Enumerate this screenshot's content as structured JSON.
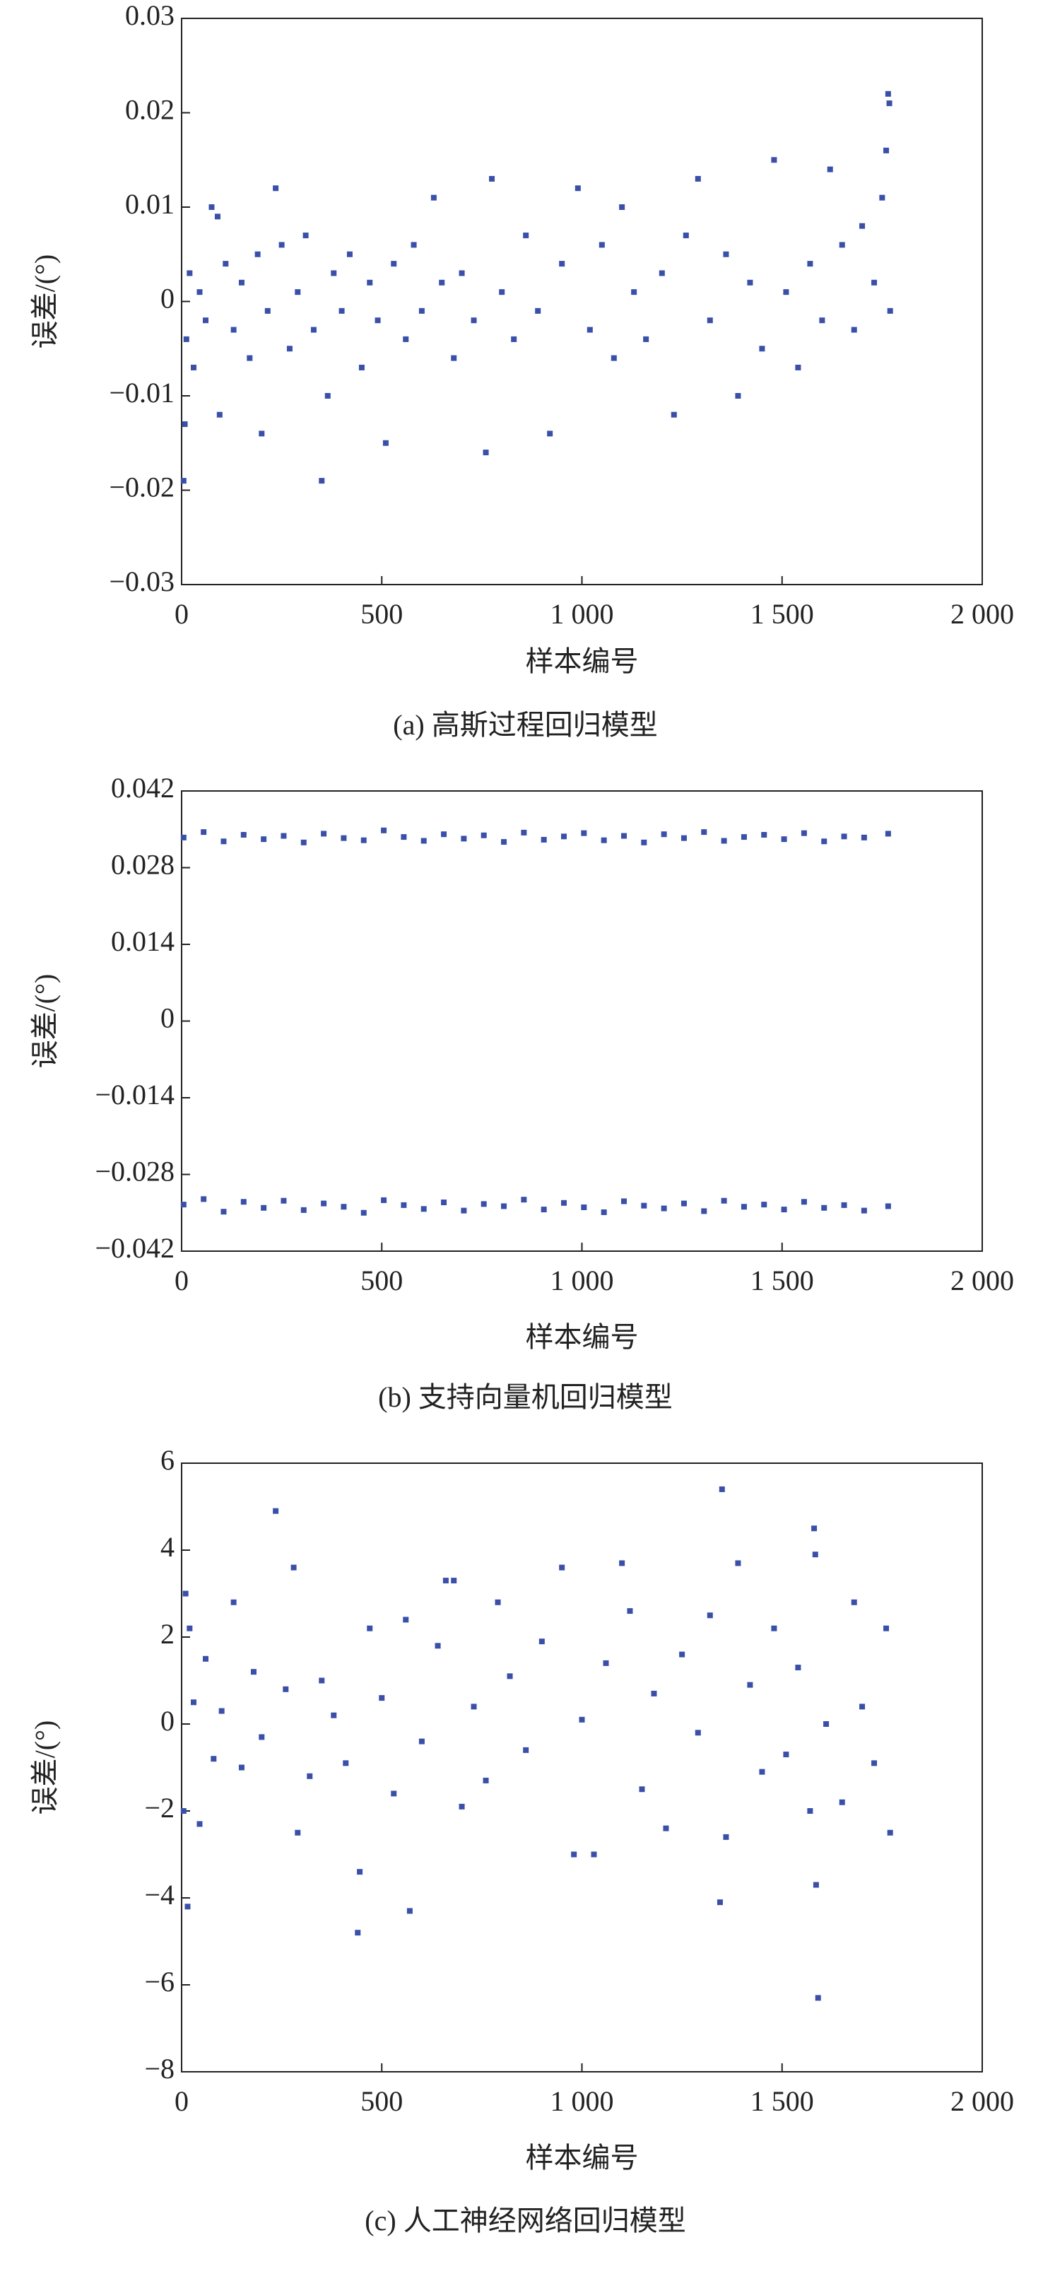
{
  "chart_data": [
    {
      "type": "scatter",
      "title": "(a) 高斯过程回归模型",
      "xlabel": "样本编号",
      "ylabel": "误差/(°)",
      "color": "#3a4fa8",
      "xlim": [
        0,
        2000
      ],
      "ylim": [
        -0.03,
        0.03
      ],
      "xticks": [
        0,
        500,
        {
          "value": 1000,
          "label": "1 000"
        },
        {
          "value": 1500,
          "label": "1 500"
        },
        {
          "value": 2000,
          "label": "2 000"
        }
      ],
      "yticks": [
        {
          "value": -0.03,
          "label": "−0.03"
        },
        {
          "value": -0.02,
          "label": "−0.02"
        },
        {
          "value": -0.01,
          "label": "−0.01"
        },
        0,
        0.01,
        0.02,
        0.03
      ],
      "x": [
        5,
        8,
        12,
        20,
        30,
        45,
        60,
        75,
        90,
        95,
        110,
        130,
        150,
        170,
        190,
        200,
        215,
        235,
        250,
        270,
        290,
        310,
        330,
        350,
        365,
        380,
        400,
        420,
        450,
        470,
        490,
        510,
        530,
        560,
        580,
        600,
        630,
        650,
        680,
        700,
        730,
        760,
        775,
        800,
        830,
        860,
        890,
        920,
        950,
        990,
        1020,
        1050,
        1080,
        1100,
        1130,
        1160,
        1200,
        1230,
        1260,
        1290,
        1320,
        1360,
        1390,
        1420,
        1450,
        1480,
        1510,
        1540,
        1570,
        1600,
        1620,
        1650,
        1680,
        1700,
        1730,
        1750,
        1760,
        1765,
        1768,
        1770
      ],
      "values": [
        -0.019,
        -0.013,
        -0.004,
        0.003,
        -0.007,
        0.001,
        -0.002,
        0.01,
        0.009,
        -0.012,
        0.004,
        -0.003,
        0.002,
        -0.006,
        0.005,
        -0.014,
        -0.001,
        0.012,
        0.006,
        -0.005,
        0.001,
        0.007,
        -0.003,
        -0.019,
        -0.01,
        0.003,
        -0.001,
        0.005,
        -0.007,
        0.002,
        -0.002,
        -0.015,
        0.004,
        -0.004,
        0.006,
        -0.001,
        0.011,
        0.002,
        -0.006,
        0.003,
        -0.002,
        -0.016,
        0.013,
        0.001,
        -0.004,
        0.007,
        -0.001,
        -0.014,
        0.004,
        0.012,
        -0.003,
        0.006,
        -0.006,
        0.01,
        0.001,
        -0.004,
        0.003,
        -0.012,
        0.007,
        0.013,
        -0.002,
        0.005,
        -0.01,
        0.002,
        -0.005,
        0.015,
        0.001,
        -0.007,
        0.004,
        -0.002,
        0.014,
        0.006,
        -0.003,
        0.008,
        0.002,
        0.011,
        0.016,
        0.022,
        0.021,
        -0.001
      ]
    },
    {
      "type": "scatter",
      "title": "(b) 支持向量机回归模型",
      "xlabel": "样本编号",
      "ylabel": "误差/(°)",
      "color": "#3a4fa8",
      "xlim": [
        0,
        2000
      ],
      "ylim": [
        -0.042,
        0.042
      ],
      "xticks": [
        0,
        500,
        {
          "value": 1000,
          "label": "1 000"
        },
        {
          "value": 1500,
          "label": "1 500"
        },
        {
          "value": 2000,
          "label": "2 000"
        }
      ],
      "yticks": [
        {
          "value": -0.042,
          "label": "−0.042"
        },
        {
          "value": -0.028,
          "label": "−0.028"
        },
        {
          "value": -0.014,
          "label": "−0.014"
        },
        0,
        0.014,
        0.028,
        0.042
      ],
      "x": [
        5,
        55,
        105,
        155,
        205,
        255,
        305,
        355,
        405,
        455,
        505,
        555,
        605,
        655,
        705,
        755,
        805,
        855,
        905,
        955,
        1005,
        1055,
        1105,
        1155,
        1205,
        1255,
        1305,
        1355,
        1405,
        1455,
        1505,
        1555,
        1605,
        1655,
        1705,
        1765,
        5,
        55,
        105,
        155,
        205,
        255,
        305,
        355,
        405,
        455,
        505,
        555,
        605,
        655,
        705,
        755,
        805,
        855,
        905,
        955,
        1005,
        1055,
        1105,
        1155,
        1205,
        1255,
        1305,
        1355,
        1405,
        1455,
        1505,
        1555,
        1605,
        1655,
        1705,
        1765
      ],
      "values": [
        0.0335,
        0.0345,
        0.0328,
        0.034,
        0.0332,
        0.0338,
        0.0326,
        0.0342,
        0.0334,
        0.033,
        0.0348,
        0.0336,
        0.0329,
        0.0341,
        0.0333,
        0.0339,
        0.0327,
        0.0344,
        0.0331,
        0.0337,
        0.0343,
        0.033,
        0.0338,
        0.0326,
        0.0341,
        0.0334,
        0.0345,
        0.0329,
        0.0336,
        0.034,
        0.0332,
        0.0343,
        0.0328,
        0.0337,
        0.0335,
        0.0342,
        -0.0335,
        -0.0325,
        -0.0348,
        -0.033,
        -0.0341,
        -0.0328,
        -0.0345,
        -0.0333,
        -0.0339,
        -0.035,
        -0.0327,
        -0.0336,
        -0.0343,
        -0.0331,
        -0.0346,
        -0.0334,
        -0.0338,
        -0.0326,
        -0.0344,
        -0.0332,
        -0.034,
        -0.0349,
        -0.0329,
        -0.0337,
        -0.0342,
        -0.0333,
        -0.0347,
        -0.0328,
        -0.0339,
        -0.0335,
        -0.0344,
        -0.033,
        -0.0341,
        -0.0336,
        -0.0346,
        -0.0338
      ]
    },
    {
      "type": "scatter",
      "title": "(c) 人工神经网络回归模型",
      "xlabel": "样本编号",
      "ylabel": "误差/(°)",
      "color": "#3a4fa8",
      "xlim": [
        0,
        2000
      ],
      "ylim": [
        -8,
        6
      ],
      "xticks": [
        0,
        500,
        {
          "value": 1000,
          "label": "1 000"
        },
        {
          "value": 1500,
          "label": "1 500"
        },
        {
          "value": 2000,
          "label": "2 000"
        }
      ],
      "yticks": [
        {
          "value": -8,
          "label": "−8"
        },
        {
          "value": -6,
          "label": "−6"
        },
        {
          "value": -4,
          "label": "−4"
        },
        {
          "value": -2,
          "label": "−2"
        },
        0,
        2,
        4,
        6
      ],
      "x": [
        5,
        10,
        15,
        20,
        30,
        45,
        60,
        80,
        100,
        130,
        150,
        180,
        200,
        235,
        260,
        280,
        290,
        320,
        350,
        380,
        410,
        440,
        445,
        470,
        500,
        530,
        560,
        570,
        600,
        640,
        660,
        680,
        700,
        730,
        760,
        790,
        820,
        860,
        900,
        950,
        980,
        1000,
        1030,
        1060,
        1100,
        1120,
        1150,
        1180,
        1210,
        1250,
        1290,
        1320,
        1345,
        1350,
        1360,
        1390,
        1420,
        1450,
        1480,
        1510,
        1540,
        1570,
        1580,
        1583,
        1590,
        1585,
        1610,
        1650,
        1680,
        1700,
        1730,
        1760,
        1770
      ],
      "values": [
        -2.0,
        3.0,
        -4.2,
        2.2,
        0.5,
        -2.3,
        1.5,
        -0.8,
        0.3,
        2.8,
        -1.0,
        1.2,
        -0.3,
        4.9,
        0.8,
        3.6,
        -2.5,
        -1.2,
        1.0,
        0.2,
        -0.9,
        -4.8,
        -3.4,
        2.2,
        0.6,
        -1.6,
        2.4,
        -4.3,
        -0.4,
        1.8,
        3.3,
        3.3,
        -1.9,
        0.4,
        -1.3,
        2.8,
        1.1,
        -0.6,
        1.9,
        3.6,
        -3.0,
        0.1,
        -3.0,
        1.4,
        3.7,
        2.6,
        -1.5,
        0.7,
        -2.4,
        1.6,
        -0.2,
        2.5,
        -4.1,
        5.4,
        -2.6,
        3.7,
        0.9,
        -1.1,
        2.2,
        -0.7,
        1.3,
        -2.0,
        4.5,
        3.9,
        -6.3,
        -3.7,
        0.0,
        -1.8,
        2.8,
        0.4,
        -0.9,
        2.2,
        -2.5
      ]
    }
  ]
}
